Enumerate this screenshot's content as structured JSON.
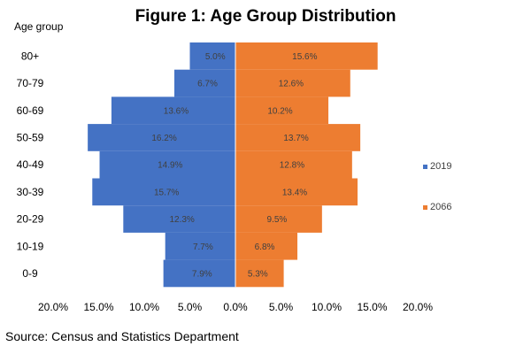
{
  "chart_data": {
    "type": "bar",
    "orientation": "horizontal",
    "title": "Figure 1: Age Group Distribution",
    "ylabel": "Age group",
    "categories": [
      "0-9",
      "10-19",
      "20-29",
      "30-39",
      "40-49",
      "50-59",
      "60-69",
      "70-79",
      "80+"
    ],
    "series": [
      {
        "name": "2019",
        "values": [
          7.9,
          7.7,
          12.3,
          15.7,
          14.9,
          16.2,
          13.6,
          6.7,
          5.0
        ],
        "color": "#4472C4",
        "direction": "left"
      },
      {
        "name": "2066",
        "values": [
          5.3,
          6.8,
          9.5,
          13.4,
          12.8,
          13.7,
          10.2,
          12.6,
          15.6
        ],
        "color": "#ED7D31",
        "direction": "right"
      }
    ],
    "value_unit": "%",
    "xlim": [
      -20,
      20
    ],
    "xticks": [
      "20.0%",
      "15.0%",
      "10.0%",
      "5.0%",
      "0.0%",
      "5.0%",
      "10.0%",
      "15.0%",
      "20.0%"
    ],
    "legend_position": "right",
    "grid": false
  },
  "source": "Source: Census and Statistics Department"
}
